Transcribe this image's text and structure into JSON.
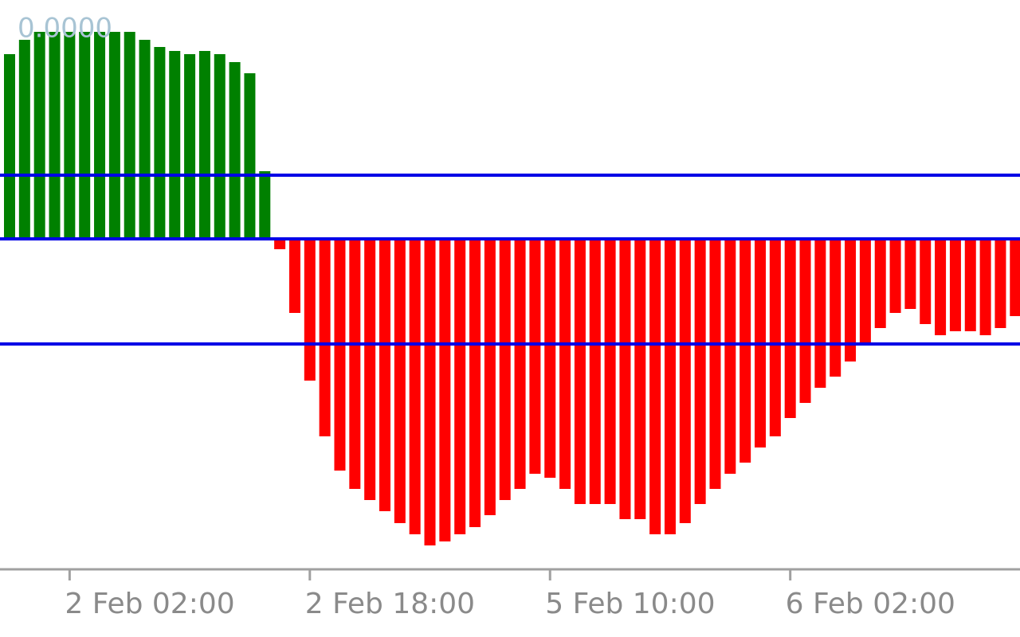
{
  "chart_data": {
    "type": "bar",
    "indicator_value": "0.0000",
    "categories": [
      null,
      null,
      null,
      null,
      "2 Feb 02:00",
      null,
      null,
      null,
      null,
      null,
      null,
      null,
      null,
      null,
      null,
      null,
      null,
      null,
      null,
      null,
      "2 Feb 18:00",
      null,
      null,
      null,
      null,
      null,
      null,
      null,
      null,
      null,
      null,
      null,
      null,
      null,
      null,
      null,
      "5 Feb 10:00",
      null,
      null,
      null,
      null,
      null,
      null,
      null,
      null,
      null,
      null,
      null,
      null,
      null,
      null,
      null,
      "6 Feb 02:00",
      null,
      null,
      null,
      null,
      null,
      null,
      null,
      null,
      null,
      null,
      null,
      null,
      null,
      null,
      null
    ],
    "values": [
      2.32,
      2.5,
      2.6,
      2.6,
      2.6,
      2.6,
      2.6,
      2.6,
      2.6,
      2.5,
      2.41,
      2.36,
      2.32,
      2.36,
      2.32,
      2.22,
      2.08,
      0.85,
      -0.13,
      -0.93,
      -1.78,
      -2.48,
      -2.91,
      -3.14,
      -3.28,
      -3.42,
      -3.57,
      -3.71,
      -3.85,
      -3.8,
      -3.71,
      -3.62,
      -3.47,
      -3.28,
      -3.14,
      -2.95,
      -3.0,
      -3.14,
      -3.33,
      -3.33,
      -3.33,
      -3.52,
      -3.52,
      -3.71,
      -3.71,
      -3.57,
      -3.33,
      -3.14,
      -2.95,
      -2.81,
      -2.62,
      -2.48,
      -2.25,
      -2.06,
      -1.87,
      -1.73,
      -1.54,
      -1.31,
      -1.12,
      -0.93,
      -0.88,
      -1.07,
      -1.21,
      -1.16,
      -1.16,
      -1.21,
      -1.12,
      -0.97
    ],
    "positive_color": "#008000",
    "negative_color": "#ff0000",
    "levels": [
      0.8,
      0,
      -1.32
    ],
    "level_color": "#0000e6",
    "ylim": [
      -4.15,
      3.0
    ]
  }
}
